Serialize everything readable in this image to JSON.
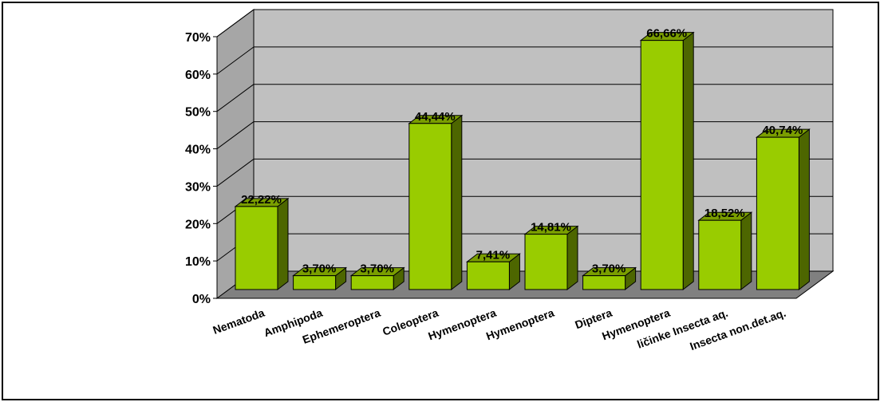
{
  "chart_data": {
    "type": "bar",
    "title": "",
    "xlabel": "",
    "ylabel": "",
    "ylim": [
      0,
      70
    ],
    "yticks": [
      "0%",
      "10%",
      "20%",
      "30%",
      "40%",
      "50%",
      "60%",
      "70%"
    ],
    "grid": true,
    "categories": [
      "Nematoda",
      "Amphipoda",
      "Ephemeroptera",
      "Coleoptera",
      "Hymenoptera",
      "Hymenoptera",
      "Diptera",
      "Hymenoptera",
      "ličinke Insecta aq.",
      "Insecta non.det.aq."
    ],
    "values": [
      22.22,
      3.7,
      3.7,
      44.44,
      7.41,
      14.81,
      3.7,
      66.66,
      18.52,
      40.74
    ],
    "data_labels": [
      "22,22%",
      "3,70%",
      "3,70%",
      "44,44%",
      "7,41%",
      "14,81%",
      "3,70%",
      "66,66%",
      "18,52%",
      "40,74%"
    ],
    "colors": {
      "bar_front": "#99cc00",
      "bar_side": "#4d6600",
      "bar_top": "#7a9e00",
      "back_wall": "#c0c0c0",
      "side_wall": "#a6a6a6",
      "floor": "#808080"
    }
  }
}
